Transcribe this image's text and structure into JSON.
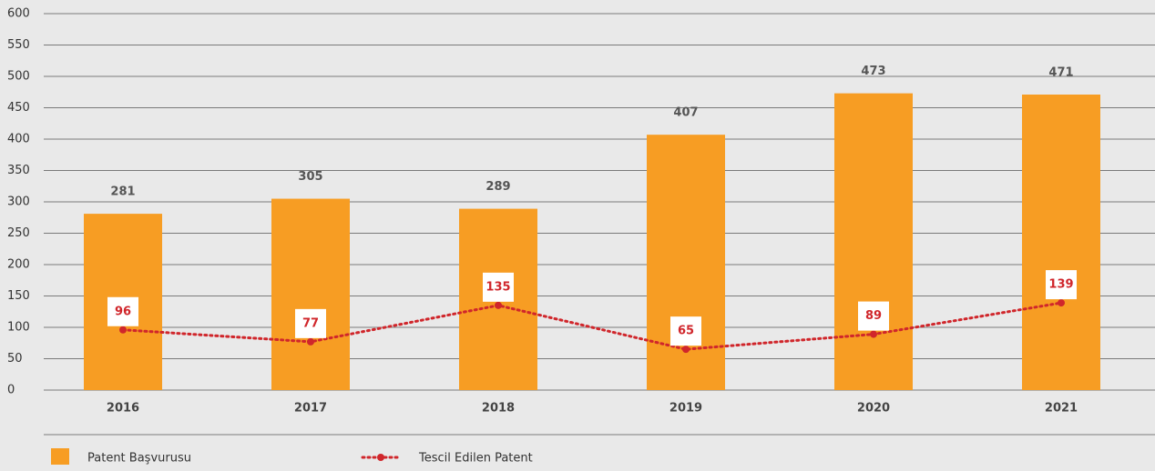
{
  "chart_data": {
    "type": "bar",
    "categories": [
      "2016",
      "2017",
      "2018",
      "2019",
      "2020",
      "2021"
    ],
    "series": [
      {
        "name": "Patent Başvurusu",
        "type": "bar",
        "color": "#f79d23",
        "values": [
          281,
          305,
          289,
          407,
          473,
          471
        ]
      },
      {
        "name": "Tescil Edilen Patent",
        "type": "line",
        "color": "#d0262b",
        "values": [
          96,
          77,
          135,
          65,
          89,
          139
        ]
      }
    ],
    "ylim": [
      0,
      600
    ],
    "yticks": [
      0,
      50,
      100,
      150,
      200,
      250,
      300,
      350,
      400,
      450,
      500,
      550,
      600
    ],
    "grid": true
  }
}
